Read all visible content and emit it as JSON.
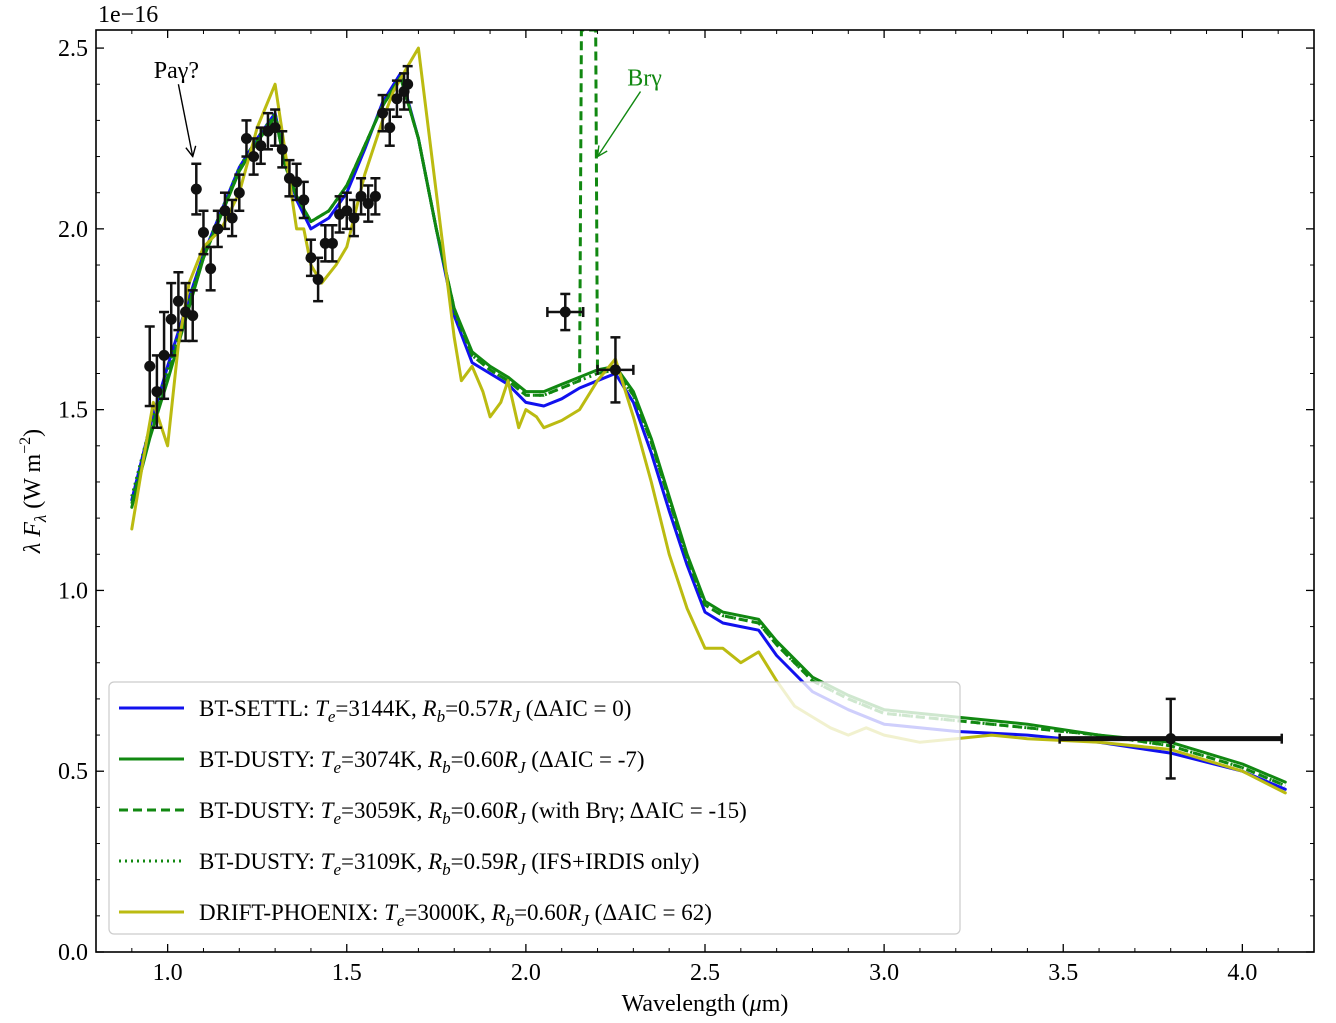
{
  "chart_data": {
    "type": "line",
    "exponent_label": "1e−16",
    "xlabel": "Wavelength (μm)",
    "ylabel": "λ F_λ (W m^−2)",
    "xlim": [
      0.8,
      4.2
    ],
    "ylim": [
      0.0,
      2.55
    ],
    "xticks": [
      1.0,
      1.5,
      2.0,
      2.5,
      3.0,
      3.5,
      4.0
    ],
    "xtick_labels": [
      "1.0",
      "1.5",
      "2.0",
      "2.5",
      "3.0",
      "3.5",
      "4.0"
    ],
    "yticks": [
      0.0,
      0.5,
      1.0,
      1.5,
      2.0,
      2.5
    ],
    "ytick_labels": [
      "0.0",
      "0.5",
      "1.0",
      "1.5",
      "2.0",
      "2.5"
    ],
    "grid": false,
    "legend_position": "bottom-left",
    "annotations": [
      {
        "text": "Paγ?",
        "color": "#000000",
        "arrow_from": [
          1.03,
          2.4
        ],
        "arrow_to": [
          1.07,
          2.2
        ]
      },
      {
        "text": "Brγ",
        "color": "#118811",
        "arrow_from": [
          2.32,
          2.38
        ],
        "arrow_to": [
          2.2,
          2.2
        ]
      }
    ],
    "series": [
      {
        "name": "BT-SETTL",
        "legend_prefix": "BT-SETTL: ",
        "teff": "3144K",
        "rb": "0.57",
        "note": "(ΔAIC = 0)",
        "color": "#1111ee",
        "dash": "solid",
        "x": [
          0.9,
          0.95,
          1.0,
          1.05,
          1.1,
          1.15,
          1.2,
          1.25,
          1.3,
          1.33,
          1.36,
          1.4,
          1.45,
          1.5,
          1.55,
          1.6,
          1.65,
          1.7,
          1.75,
          1.8,
          1.85,
          1.9,
          1.95,
          2.0,
          2.05,
          2.1,
          2.15,
          2.2,
          2.25,
          2.3,
          2.35,
          2.4,
          2.45,
          2.5,
          2.55,
          2.6,
          2.65,
          2.7,
          2.8,
          2.9,
          3.0,
          3.2,
          3.4,
          3.6,
          3.8,
          4.0,
          4.12
        ],
        "y": [
          1.25,
          1.45,
          1.62,
          1.78,
          1.93,
          2.05,
          2.17,
          2.25,
          2.32,
          2.18,
          2.08,
          2.0,
          2.03,
          2.1,
          2.22,
          2.35,
          2.43,
          2.25,
          2.0,
          1.76,
          1.63,
          1.6,
          1.57,
          1.52,
          1.51,
          1.53,
          1.56,
          1.58,
          1.6,
          1.52,
          1.38,
          1.22,
          1.07,
          0.94,
          0.91,
          0.9,
          0.89,
          0.82,
          0.72,
          0.67,
          0.63,
          0.61,
          0.6,
          0.58,
          0.55,
          0.5,
          0.45
        ]
      },
      {
        "name": "BT-DUSTY",
        "legend_prefix": "BT-DUSTY: ",
        "teff": "3074K",
        "rb": "0.60",
        "note": "(ΔAIC = -7)",
        "color": "#118811",
        "dash": "solid",
        "x": [
          0.9,
          0.95,
          1.0,
          1.05,
          1.1,
          1.15,
          1.2,
          1.25,
          1.3,
          1.33,
          1.36,
          1.4,
          1.45,
          1.5,
          1.55,
          1.6,
          1.65,
          1.7,
          1.75,
          1.8,
          1.85,
          1.9,
          1.95,
          2.0,
          2.05,
          2.1,
          2.15,
          2.2,
          2.25,
          2.3,
          2.35,
          2.4,
          2.45,
          2.5,
          2.55,
          2.6,
          2.65,
          2.7,
          2.8,
          2.9,
          3.0,
          3.2,
          3.4,
          3.6,
          3.8,
          4.0,
          4.12
        ],
        "y": [
          1.23,
          1.42,
          1.58,
          1.75,
          1.92,
          2.04,
          2.16,
          2.24,
          2.31,
          2.17,
          2.09,
          2.02,
          2.05,
          2.12,
          2.23,
          2.34,
          2.42,
          2.25,
          2.0,
          1.78,
          1.66,
          1.62,
          1.59,
          1.55,
          1.55,
          1.57,
          1.59,
          1.61,
          1.62,
          1.55,
          1.42,
          1.26,
          1.1,
          0.97,
          0.94,
          0.93,
          0.92,
          0.86,
          0.76,
          0.71,
          0.67,
          0.65,
          0.63,
          0.6,
          0.58,
          0.52,
          0.47
        ]
      },
      {
        "name": "BT-DUSTY",
        "legend_prefix": "BT-DUSTY: ",
        "teff": "3059K",
        "rb": "0.60",
        "note": "(with Brγ; ΔAIC = -15)",
        "color": "#118811",
        "dash": "dashed",
        "x": [
          0.9,
          0.95,
          1.0,
          1.05,
          1.1,
          1.15,
          1.2,
          1.25,
          1.3,
          1.33,
          1.36,
          1.4,
          1.45,
          1.5,
          1.55,
          1.6,
          1.65,
          1.7,
          1.75,
          1.8,
          1.85,
          1.9,
          1.95,
          2.0,
          2.05,
          2.1,
          2.15,
          2.155,
          2.16,
          2.19,
          2.195,
          2.2,
          2.25,
          2.3,
          2.35,
          2.4,
          2.45,
          2.5,
          2.55,
          2.6,
          2.65,
          2.7,
          2.8,
          2.9,
          3.0,
          3.2,
          3.4,
          3.6,
          3.8,
          4.0,
          4.12
        ],
        "y": [
          1.24,
          1.43,
          1.59,
          1.76,
          1.92,
          2.04,
          2.16,
          2.24,
          2.31,
          2.17,
          2.09,
          2.02,
          2.05,
          2.12,
          2.23,
          2.34,
          2.42,
          2.25,
          2.0,
          1.78,
          1.65,
          1.61,
          1.58,
          1.54,
          1.54,
          1.56,
          1.58,
          2.55,
          2.55,
          2.55,
          2.55,
          1.6,
          1.61,
          1.54,
          1.41,
          1.25,
          1.09,
          0.96,
          0.93,
          0.92,
          0.91,
          0.85,
          0.75,
          0.7,
          0.66,
          0.64,
          0.62,
          0.6,
          0.57,
          0.51,
          0.46
        ]
      },
      {
        "name": "BT-DUSTY",
        "legend_prefix": "BT-DUSTY: ",
        "teff": "3109K",
        "rb": "0.59",
        "note": "(IFS+IRDIS only)",
        "color": "#118811",
        "dash": "dotted",
        "x": [
          0.9,
          0.95,
          1.0,
          1.05,
          1.1,
          1.15,
          1.2,
          1.25,
          1.3,
          1.33,
          1.36,
          1.4,
          1.45,
          1.5,
          1.55,
          1.6,
          1.65,
          1.7,
          1.75,
          1.8,
          1.85,
          1.9,
          1.95,
          2.0,
          2.05,
          2.1,
          2.15,
          2.2,
          2.25,
          2.3,
          2.35,
          2.4,
          2.45,
          2.5,
          2.55,
          2.6,
          2.65,
          2.7,
          2.8,
          2.9,
          3.0,
          3.2,
          3.4,
          3.6,
          3.8,
          4.0,
          4.12
        ],
        "y": [
          1.26,
          1.45,
          1.61,
          1.77,
          1.93,
          2.05,
          2.17,
          2.25,
          2.32,
          2.18,
          2.09,
          2.02,
          2.05,
          2.12,
          2.23,
          2.34,
          2.42,
          2.25,
          2.0,
          1.77,
          1.65,
          1.61,
          1.58,
          1.54,
          1.54,
          1.56,
          1.58,
          1.6,
          1.61,
          1.54,
          1.41,
          1.25,
          1.09,
          0.96,
          0.93,
          0.92,
          0.91,
          0.85,
          0.75,
          0.7,
          0.66,
          0.64,
          0.62,
          0.6,
          0.57,
          0.51,
          0.46
        ]
      },
      {
        "name": "DRIFT-PHOENIX",
        "legend_prefix": "DRIFT-PHOENIX: ",
        "teff": "3000K",
        "rb": "0.60",
        "note": "(ΔAIC = 62)",
        "color": "#bbbb11",
        "dash": "solid",
        "x": [
          0.9,
          0.93,
          0.96,
          1.0,
          1.03,
          1.06,
          1.1,
          1.15,
          1.2,
          1.25,
          1.3,
          1.33,
          1.36,
          1.38,
          1.4,
          1.43,
          1.47,
          1.5,
          1.55,
          1.6,
          1.63,
          1.67,
          1.7,
          1.75,
          1.8,
          1.82,
          1.85,
          1.88,
          1.9,
          1.93,
          1.95,
          1.98,
          2.0,
          2.03,
          2.05,
          2.1,
          2.15,
          2.2,
          2.25,
          2.3,
          2.35,
          2.4,
          2.45,
          2.5,
          2.55,
          2.6,
          2.65,
          2.7,
          2.75,
          2.8,
          2.85,
          2.9,
          2.95,
          3.0,
          3.1,
          3.2,
          3.3,
          3.4,
          3.6,
          3.8,
          4.0,
          4.12
        ],
        "y": [
          1.17,
          1.35,
          1.52,
          1.4,
          1.68,
          1.85,
          1.95,
          2.0,
          2.1,
          2.28,
          2.4,
          2.2,
          2.0,
          2.0,
          1.9,
          1.85,
          1.9,
          1.95,
          2.15,
          2.3,
          2.38,
          2.45,
          2.5,
          2.1,
          1.7,
          1.58,
          1.62,
          1.55,
          1.48,
          1.52,
          1.58,
          1.45,
          1.5,
          1.48,
          1.45,
          1.47,
          1.5,
          1.58,
          1.64,
          1.48,
          1.3,
          1.1,
          0.95,
          0.84,
          0.84,
          0.8,
          0.83,
          0.75,
          0.68,
          0.65,
          0.62,
          0.6,
          0.62,
          0.6,
          0.58,
          0.59,
          0.6,
          0.59,
          0.58,
          0.56,
          0.5,
          0.44
        ]
      }
    ],
    "data_points": [
      {
        "x": 0.95,
        "y": 1.62,
        "yerr": 0.11
      },
      {
        "x": 0.97,
        "y": 1.55,
        "yerr": 0.1
      },
      {
        "x": 0.99,
        "y": 1.65,
        "yerr": 0.12
      },
      {
        "x": 1.01,
        "y": 1.75,
        "yerr": 0.1
      },
      {
        "x": 1.03,
        "y": 1.8,
        "yerr": 0.08
      },
      {
        "x": 1.05,
        "y": 1.77,
        "yerr": 0.08
      },
      {
        "x": 1.07,
        "y": 1.76,
        "yerr": 0.07
      },
      {
        "x": 1.08,
        "y": 2.11,
        "yerr": 0.07
      },
      {
        "x": 1.1,
        "y": 1.99,
        "yerr": 0.06
      },
      {
        "x": 1.12,
        "y": 1.89,
        "yerr": 0.06
      },
      {
        "x": 1.14,
        "y": 2.0,
        "yerr": 0.05
      },
      {
        "x": 1.16,
        "y": 2.05,
        "yerr": 0.05
      },
      {
        "x": 1.18,
        "y": 2.03,
        "yerr": 0.05
      },
      {
        "x": 1.2,
        "y": 2.1,
        "yerr": 0.05
      },
      {
        "x": 1.22,
        "y": 2.25,
        "yerr": 0.05
      },
      {
        "x": 1.24,
        "y": 2.2,
        "yerr": 0.05
      },
      {
        "x": 1.26,
        "y": 2.23,
        "yerr": 0.05
      },
      {
        "x": 1.28,
        "y": 2.27,
        "yerr": 0.05
      },
      {
        "x": 1.3,
        "y": 2.28,
        "yerr": 0.05
      },
      {
        "x": 1.32,
        "y": 2.22,
        "yerr": 0.05
      },
      {
        "x": 1.34,
        "y": 2.14,
        "yerr": 0.05
      },
      {
        "x": 1.36,
        "y": 2.13,
        "yerr": 0.05
      },
      {
        "x": 1.38,
        "y": 2.08,
        "yerr": 0.05
      },
      {
        "x": 1.4,
        "y": 1.92,
        "yerr": 0.05
      },
      {
        "x": 1.42,
        "y": 1.86,
        "yerr": 0.06
      },
      {
        "x": 1.44,
        "y": 1.96,
        "yerr": 0.05
      },
      {
        "x": 1.46,
        "y": 1.96,
        "yerr": 0.05
      },
      {
        "x": 1.48,
        "y": 2.04,
        "yerr": 0.05
      },
      {
        "x": 1.5,
        "y": 2.05,
        "yerr": 0.05
      },
      {
        "x": 1.52,
        "y": 2.03,
        "yerr": 0.05
      },
      {
        "x": 1.54,
        "y": 2.09,
        "yerr": 0.05
      },
      {
        "x": 1.56,
        "y": 2.07,
        "yerr": 0.05
      },
      {
        "x": 1.58,
        "y": 2.09,
        "yerr": 0.05
      },
      {
        "x": 1.6,
        "y": 2.32,
        "yerr": 0.05
      },
      {
        "x": 1.62,
        "y": 2.28,
        "yerr": 0.05
      },
      {
        "x": 1.64,
        "y": 2.36,
        "yerr": 0.05
      },
      {
        "x": 1.66,
        "y": 2.38,
        "yerr": 0.05
      },
      {
        "x": 1.67,
        "y": 2.4,
        "yerr": 0.05
      },
      {
        "x": 2.11,
        "y": 1.77,
        "yerr": 0.05,
        "xerr": 0.05
      },
      {
        "x": 2.25,
        "y": 1.61,
        "yerr": 0.09,
        "xerr": 0.05
      },
      {
        "x": 3.8,
        "y": 0.59,
        "yerr": 0.11,
        "xerr": 0.31
      }
    ]
  }
}
